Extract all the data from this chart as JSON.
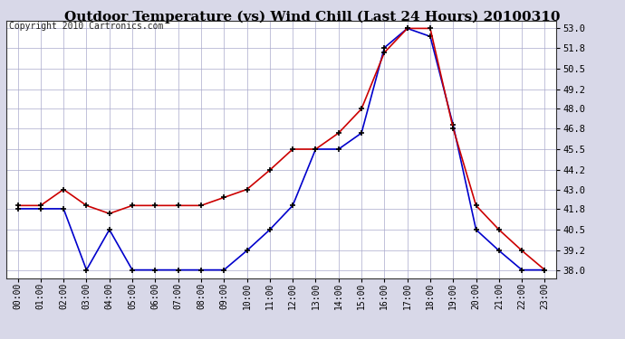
{
  "title": "Outdoor Temperature (vs) Wind Chill (Last 24 Hours) 20100310",
  "copyright_text": "Copyright 2010 Cartronics.com",
  "hours": [
    "00:00",
    "01:00",
    "02:00",
    "03:00",
    "04:00",
    "05:00",
    "06:00",
    "07:00",
    "08:00",
    "09:00",
    "10:00",
    "11:00",
    "12:00",
    "13:00",
    "14:00",
    "15:00",
    "16:00",
    "17:00",
    "18:00",
    "19:00",
    "20:00",
    "21:00",
    "22:00",
    "23:00"
  ],
  "outdoor_temp": [
    42.0,
    42.0,
    43.0,
    42.0,
    41.5,
    42.0,
    42.0,
    42.0,
    42.0,
    42.5,
    43.0,
    44.2,
    45.5,
    45.5,
    46.5,
    48.0,
    51.5,
    53.0,
    53.0,
    46.8,
    42.0,
    40.5,
    39.2,
    38.0
  ],
  "wind_chill": [
    41.8,
    41.8,
    41.8,
    38.0,
    40.5,
    38.0,
    38.0,
    38.0,
    38.0,
    38.0,
    39.2,
    40.5,
    42.0,
    45.5,
    45.5,
    46.5,
    51.8,
    53.0,
    52.5,
    47.0,
    40.5,
    39.2,
    38.0,
    38.0
  ],
  "ylim_min": 37.5,
  "ylim_max": 53.5,
  "yticks": [
    38.0,
    39.2,
    40.5,
    41.8,
    43.0,
    44.2,
    45.5,
    46.8,
    48.0,
    49.2,
    50.5,
    51.8,
    53.0
  ],
  "temp_color": "#cc0000",
  "wind_chill_color": "#0000cc",
  "bg_color": "#d8d8e8",
  "plot_bg_color": "#ffffff",
  "grid_color": "#aaaacc",
  "title_fontsize": 11,
  "copyright_fontsize": 7
}
